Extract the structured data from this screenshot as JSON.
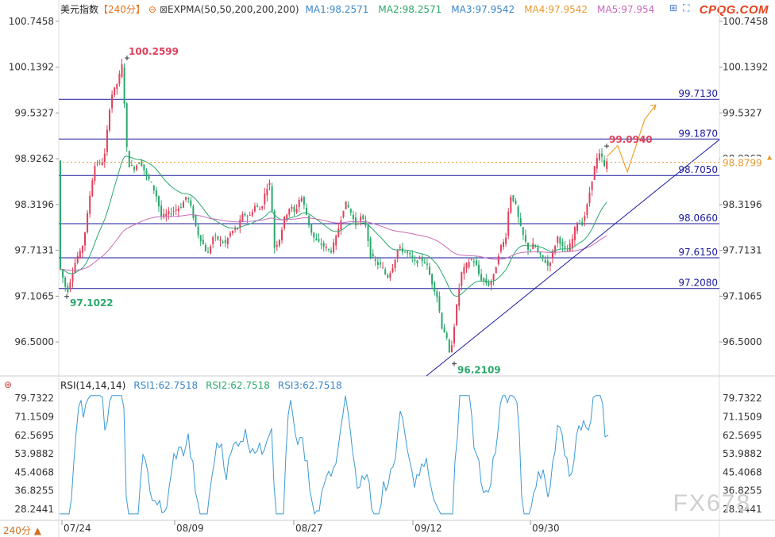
{
  "header": {
    "title": "美元指数",
    "period": "【240分】",
    "indicator": "EXPMA(50,50,200,200,200)",
    "ma": [
      {
        "label": "MA1:98.2571",
        "color": "#3a86c8"
      },
      {
        "label": "MA2:98.2571",
        "color": "#2aa86a"
      },
      {
        "label": "MA3:97.9542",
        "color": "#3a86c8"
      },
      {
        "label": "MA4:97.9542",
        "color": "#e89a30"
      },
      {
        "label": "MA5:97.954",
        "color": "#c86ab8"
      }
    ]
  },
  "brand": "CPQG.COM",
  "watermark": "FX678",
  "footer_period": "240分 ▲",
  "rsi_header": {
    "label": "RSI(14,14,14)",
    "rsi": [
      {
        "label": "RSI1:62.7518",
        "color": "#3a86c8"
      },
      {
        "label": "RSI2:62.7518",
        "color": "#2aa86a"
      },
      {
        "label": "RSI3:62.7518",
        "color": "#3a86c8"
      }
    ]
  },
  "chart_data": [
    {
      "type": "candlestick",
      "y_ticks": [
        100.7458,
        100.1392,
        99.5327,
        98.9262,
        98.3196,
        97.7131,
        97.1065,
        96.5
      ],
      "ylim": [
        96.05,
        100.86
      ],
      "x_ticks": [
        "07/24",
        "08/09",
        "08/27",
        "09/12",
        "09/30"
      ],
      "levels": [
        99.713,
        99.187,
        98.705,
        98.066,
        97.615,
        97.208
      ],
      "annotations": [
        {
          "text": "100.2599",
          "value": 100.2599,
          "color": "#e0405a"
        },
        {
          "text": "97.1022",
          "value": 97.1022,
          "color": "#2aa86a"
        },
        {
          "text": "96.2109",
          "value": 96.2109,
          "color": "#2aa86a"
        },
        {
          "text": "99.0940",
          "value": 99.094,
          "color": "#e0405a"
        }
      ],
      "current_price": 98.8799,
      "colors": {
        "up": "#e0405a",
        "down": "#2aa86a",
        "level": "#1a1a9e",
        "trend": "#1a1a9e",
        "projection": "#f0a030",
        "ema_fast": "#2aa86a",
        "ema_slow": "#c86ab8"
      }
    },
    {
      "type": "line",
      "name": "RSI",
      "y_ticks": [
        79.7322,
        71.1509,
        62.5695,
        53.9882,
        45.4068,
        36.8255,
        28.2441
      ],
      "ylim": [
        24.5,
        83.5
      ],
      "last_value": 62.7518,
      "color": "#3a9ad8"
    }
  ]
}
